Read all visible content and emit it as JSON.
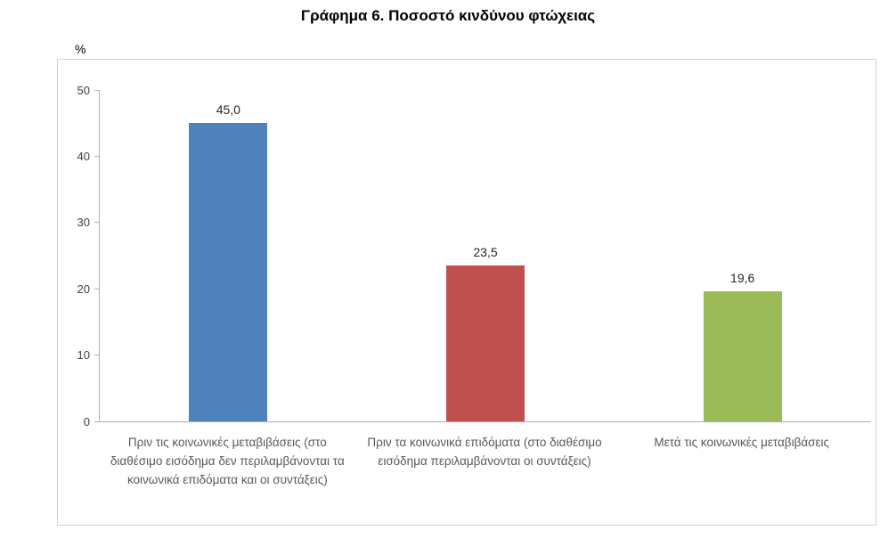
{
  "chart_data": {
    "type": "bar",
    "title": "Γράφημα 6. Ποσοστό κινδύνου φτώχειας",
    "ylabel": "%",
    "xlabel": "",
    "ylim": [
      0,
      50
    ],
    "yticks": [
      0,
      10,
      20,
      30,
      40,
      50
    ],
    "grid": false,
    "legend": false,
    "categories": [
      "Πριν τις κοινωνικές μεταβιβάσεις (στο διαθέσιμο εισόδημα δεν περιλαμβάνονται τα κοινωνικά επιδόματα και οι συντάξεις)",
      "Πριν τα κοινωνικά επιδόματα (στο διαθέσιμο εισόδημα περιλαμβάνονται οι συντάξεις)",
      "Μετά τις κοινωνικές μεταβιβάσεις"
    ],
    "values": [
      45.0,
      23.5,
      19.6
    ],
    "value_labels": [
      "45,0",
      "23,5",
      "19,6"
    ],
    "colors": [
      "#4F81BD",
      "#C0504D",
      "#9BBB59"
    ]
  }
}
